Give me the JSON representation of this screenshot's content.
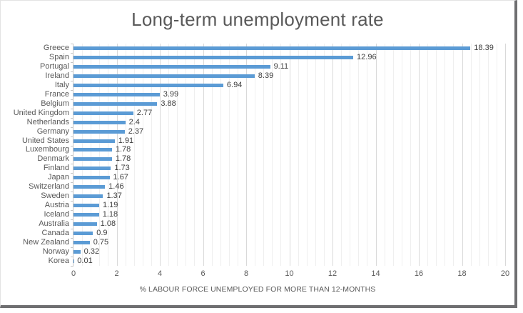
{
  "chart_data": {
    "type": "bar",
    "orientation": "horizontal",
    "title": "Long-term unemployment rate",
    "xlabel": "% LABOUR FORCE UNEMPLOYED FOR MORE THAN 12-MONTHS",
    "ylabel": "",
    "categories": [
      "Greece",
      "Spain",
      "Portugal",
      "Ireland",
      "Italy",
      "France",
      "Belgium",
      "United Kingdom",
      "Netherlands",
      "Germany",
      "United States",
      "Luxembourg",
      "Denmark",
      "Finland",
      "Japan",
      "Switzerland",
      "Sweden",
      "Austria",
      "Iceland",
      "Australia",
      "Canada",
      "New Zealand",
      "Norway",
      "Korea"
    ],
    "values": [
      18.39,
      12.96,
      9.11,
      8.39,
      6.94,
      3.99,
      3.88,
      2.77,
      2.4,
      2.37,
      1.91,
      1.78,
      1.78,
      1.73,
      1.67,
      1.46,
      1.37,
      1.19,
      1.18,
      1.08,
      0.9,
      0.75,
      0.32,
      0.01
    ],
    "value_labels": [
      "18.39",
      "12.96",
      "9.11",
      "8.39",
      "6.94",
      "3.99",
      "3.88",
      "2.77",
      "2.4",
      "2.37",
      "1.91",
      "1.78",
      "1.78",
      "1.73",
      "1.67",
      "1.46",
      "1.37",
      "1.19",
      "1.18",
      "1.08",
      "0.9",
      "0.75",
      "0.32",
      "0.01"
    ],
    "xlim": [
      0,
      20
    ],
    "x_ticks": [
      "0",
      "2",
      "4",
      "6",
      "8",
      "10",
      "12",
      "14",
      "16",
      "18",
      "20"
    ],
    "major_unit": 2,
    "minor_unit": 0.4,
    "grid": "vertical, major and minor, on",
    "legend": "none",
    "colors": {
      "bar": "#5B9BD5",
      "title_text": "#595959",
      "axis_text": "#595959",
      "data_label_text": "#404040",
      "major_grid": "#d9d9d9",
      "minor_grid": "#efefef",
      "axis_line": "#c6c6c6"
    }
  }
}
